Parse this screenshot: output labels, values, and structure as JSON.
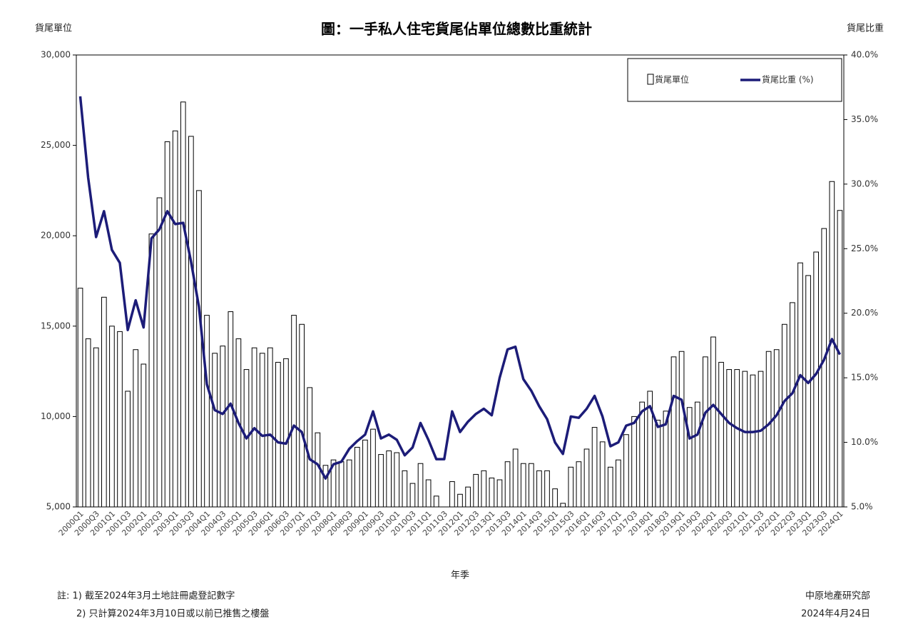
{
  "chart_data": {
    "type": "bar_line",
    "title": "圖：一手私人住宅貨尾佔單位總數比重統計",
    "y_label": "貨尾單位",
    "y2_label": "貨尾比重",
    "x_label": "年季",
    "notes": [
      "註: 1) 截至2024年3月土地註冊處登記數字",
      "2) 只計算2024年3月10日或以前已推售之樓盤"
    ],
    "source": "中原地產研究部",
    "date": "2024年4月24日",
    "legend": "upper right",
    "categories": [
      "2000Q1",
      null,
      "2000Q3",
      null,
      "2001Q1",
      null,
      "2001Q3",
      null,
      "2002Q1",
      null,
      "2002Q3",
      null,
      "2003Q1",
      null,
      "2003Q3",
      null,
      "2004Q1",
      null,
      "2004Q3",
      null,
      "2005Q1",
      null,
      "2005Q3",
      null,
      "2006Q1",
      null,
      "2006Q3",
      null,
      "2007Q1",
      null,
      "2007Q3",
      null,
      "2008Q1",
      null,
      "2008Q3",
      null,
      "2009Q1",
      null,
      "2009Q3",
      null,
      "2010Q1",
      null,
      "2010Q3",
      null,
      "2011Q1",
      null,
      "2011Q3",
      null,
      "2012Q1",
      null,
      "2012Q3",
      null,
      "2013Q1",
      null,
      "2013Q3",
      null,
      "2014Q1",
      null,
      "2014Q3",
      null,
      "2015Q1",
      null,
      "2015Q3",
      null,
      "2016Q1",
      null,
      "2016Q3",
      null,
      "2017Q1",
      null,
      "2017Q3",
      null,
      "2018Q1",
      null,
      "2018Q3",
      null,
      "2019Q1",
      null,
      "2019Q3",
      null,
      "2020Q1",
      null,
      "2020Q3",
      null,
      "2021Q1",
      null,
      "2021Q3",
      null,
      "2022Q1",
      null,
      "2022Q3",
      null,
      "2023Q1",
      null,
      "2023Q3",
      null,
      "2024Q1"
    ],
    "series": [
      {
        "name": "貨尾單位",
        "type": "bar",
        "color": "#ffffff",
        "edge_color": "#000000",
        "values": [
          17100,
          14300,
          13800,
          16600,
          15000,
          14700,
          11400,
          13700,
          12900,
          20100,
          22100,
          25200,
          25800,
          27400,
          25500,
          22500,
          15600,
          13500,
          13900,
          15800,
          14300,
          12600,
          13800,
          13500,
          13800,
          13000,
          13200,
          15600,
          15100,
          11600,
          9100,
          7300,
          7600,
          7500,
          7600,
          8300,
          8700,
          9300,
          7900,
          8100,
          8000,
          7000,
          6300,
          7400,
          6500,
          5600,
          5000,
          6400,
          5700,
          6100,
          6800,
          7000,
          6600,
          6500,
          7500,
          8200,
          7400,
          7400,
          7000,
          7000,
          6000,
          5200,
          7200,
          7500,
          8200,
          9400,
          8600,
          7200,
          7600,
          9000,
          10000,
          10800,
          11400,
          9800,
          10300,
          13300,
          13600,
          10500,
          10800,
          13300,
          14400,
          13000,
          12600,
          12600,
          12500,
          12300,
          12500,
          13600,
          13700,
          15100,
          16300,
          18500,
          17800,
          19100,
          20400,
          23000,
          21400
        ]
      },
      {
        "name": "貨尾比重 (%)",
        "type": "line",
        "axis": "y2",
        "color": "#1c1c78",
        "values": [
          36.8,
          30.5,
          25.9,
          27.9,
          24.9,
          23.9,
          18.7,
          21.0,
          18.9,
          25.8,
          26.5,
          27.9,
          26.9,
          27.0,
          24.0,
          20.5,
          14.5,
          12.5,
          12.2,
          13.0,
          11.5,
          10.3,
          11.1,
          10.5,
          10.6,
          10.0,
          9.9,
          11.3,
          10.8,
          8.7,
          8.3,
          7.2,
          8.3,
          8.5,
          9.5,
          10.1,
          10.6,
          12.4,
          10.3,
          10.6,
          10.2,
          9.0,
          9.6,
          11.5,
          10.2,
          8.7,
          8.7,
          12.4,
          10.8,
          11.6,
          12.2,
          12.6,
          12.1,
          15.0,
          17.2,
          17.4,
          14.9,
          14.0,
          12.8,
          11.8,
          10.0,
          9.1,
          12.0,
          11.9,
          12.6,
          13.6,
          12.0,
          9.7,
          10.0,
          11.3,
          11.5,
          12.4,
          12.8,
          11.2,
          11.4,
          13.6,
          13.3,
          10.3,
          10.6,
          12.3,
          12.9,
          12.2,
          11.5,
          11.1,
          10.8,
          10.8,
          10.9,
          11.4,
          12.1,
          13.2,
          13.8,
          15.2,
          14.6,
          15.3,
          16.4,
          18.0,
          16.8
        ]
      }
    ],
    "ylim": [
      5000,
      30000
    ],
    "yticks": [
      {
        "value": 5000,
        "label": "5,000"
      },
      {
        "value": 10000,
        "label": "10,000"
      },
      {
        "value": 15000,
        "label": "15,000"
      },
      {
        "value": 20000,
        "label": "20,000"
      },
      {
        "value": 25000,
        "label": "25,000"
      },
      {
        "value": 30000,
        "label": "30,000"
      }
    ],
    "y2lim": [
      5,
      40
    ],
    "y2ticks": [
      {
        "value": 5,
        "label": "5.0%"
      },
      {
        "value": 10,
        "label": "10.0%"
      },
      {
        "value": 15,
        "label": "15.0%"
      },
      {
        "value": 20,
        "label": "20.0%"
      },
      {
        "value": 25,
        "label": "25.0%"
      },
      {
        "value": 30,
        "label": "30.0%"
      },
      {
        "value": 35,
        "label": "35.0%"
      },
      {
        "value": 40,
        "label": "40.0%"
      }
    ],
    "grid": false
  }
}
